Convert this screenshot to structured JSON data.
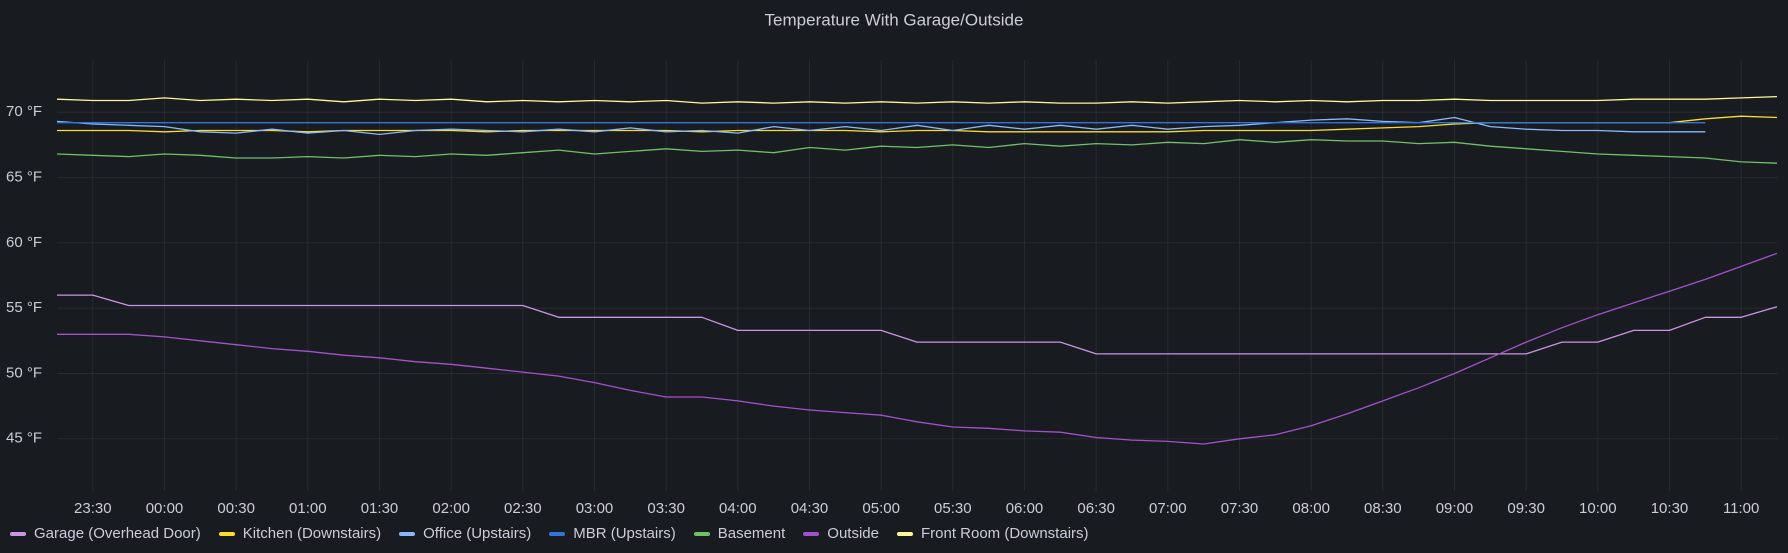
{
  "chart_data": {
    "type": "line",
    "title": "Temperature With Garage/Outside",
    "x": [
      "23:15",
      "23:30",
      "23:45",
      "00:00",
      "00:15",
      "00:30",
      "00:45",
      "01:00",
      "01:15",
      "01:30",
      "01:45",
      "02:00",
      "02:15",
      "02:30",
      "02:45",
      "03:00",
      "03:15",
      "03:30",
      "03:45",
      "04:00",
      "04:15",
      "04:30",
      "04:45",
      "05:00",
      "05:15",
      "05:30",
      "05:45",
      "06:00",
      "06:15",
      "06:30",
      "06:45",
      "07:00",
      "07:15",
      "07:30",
      "07:45",
      "08:00",
      "08:15",
      "08:30",
      "08:45",
      "09:00",
      "09:15",
      "09:30",
      "09:45",
      "10:00",
      "10:15",
      "10:30",
      "10:45",
      "11:00",
      "11:15"
    ],
    "xticks": [
      "23:30",
      "00:00",
      "00:30",
      "01:00",
      "01:30",
      "02:00",
      "02:30",
      "03:00",
      "03:30",
      "04:00",
      "04:30",
      "05:00",
      "05:30",
      "06:00",
      "06:30",
      "07:00",
      "07:30",
      "08:00",
      "08:30",
      "09:00",
      "09:30",
      "10:00",
      "10:30",
      "11:00"
    ],
    "ylim": [
      41,
      74
    ],
    "yticks": [
      {
        "value": 45,
        "label": "45 °F"
      },
      {
        "value": 50,
        "label": "50 °F"
      },
      {
        "value": 55,
        "label": "55 °F"
      },
      {
        "value": 60,
        "label": "60 °F"
      },
      {
        "value": 65,
        "label": "65 °F"
      },
      {
        "value": 70,
        "label": "70 °F"
      }
    ],
    "grid": true,
    "legend": "bottom",
    "series": [
      {
        "name": "Garage (Overhead Door)",
        "color": "#ca95e5",
        "values": [
          56,
          56,
          55.2,
          55.2,
          55.2,
          55.2,
          55.2,
          55.2,
          55.2,
          55.2,
          55.2,
          55.2,
          55.2,
          55.2,
          54.3,
          54.3,
          54.3,
          54.3,
          54.3,
          53.3,
          53.3,
          53.3,
          53.3,
          53.3,
          52.4,
          52.4,
          52.4,
          52.4,
          52.4,
          51.5,
          51.5,
          51.5,
          51.5,
          51.5,
          51.5,
          51.5,
          51.5,
          51.5,
          51.5,
          51.5,
          51.5,
          51.5,
          52.4,
          52.4,
          53.3,
          53.3,
          54.3,
          54.3,
          55.1
        ]
      },
      {
        "name": "Kitchen (Downstairs)",
        "color": "#fade2a",
        "values": [
          68.6,
          68.6,
          68.6,
          68.5,
          68.6,
          68.6,
          68.6,
          68.5,
          68.6,
          68.6,
          68.6,
          68.6,
          68.5,
          68.6,
          68.6,
          68.6,
          68.6,
          68.6,
          68.5,
          68.6,
          68.6,
          68.6,
          68.6,
          68.5,
          68.6,
          68.6,
          68.5,
          68.5,
          68.5,
          68.5,
          68.5,
          68.5,
          68.6,
          68.6,
          68.6,
          68.6,
          68.7,
          68.8,
          68.9,
          69.1,
          69.2,
          69.2,
          69.2,
          69.2,
          69.2,
          69.2,
          69.5,
          69.7,
          69.6
        ]
      },
      {
        "name": "Office (Upstairs)",
        "color": "#8ab8ff",
        "values": [
          69.3,
          69.1,
          69.0,
          68.9,
          68.5,
          68.4,
          68.7,
          68.4,
          68.6,
          68.3,
          68.6,
          68.7,
          68.6,
          68.5,
          68.7,
          68.5,
          68.8,
          68.5,
          68.6,
          68.4,
          68.9,
          68.6,
          68.9,
          68.6,
          69.0,
          68.6,
          69.0,
          68.7,
          69.0,
          68.7,
          69.0,
          68.7,
          68.9,
          69.0,
          69.2,
          69.4,
          69.5,
          69.3,
          69.2,
          69.6,
          68.9,
          68.7,
          68.6,
          68.6,
          68.5,
          68.5,
          68.5,
          null,
          null
        ]
      },
      {
        "name": "MBR (Upstairs)",
        "color": "#3274d9",
        "values": [
          69.2,
          69.2,
          69.2,
          69.2,
          69.2,
          69.2,
          69.2,
          69.2,
          69.2,
          69.2,
          69.2,
          69.2,
          69.2,
          69.2,
          69.2,
          69.2,
          69.2,
          69.2,
          69.2,
          69.2,
          69.2,
          69.2,
          69.2,
          69.2,
          69.2,
          69.2,
          69.2,
          69.2,
          69.2,
          69.2,
          69.2,
          69.2,
          69.2,
          69.2,
          69.2,
          69.2,
          69.2,
          69.2,
          69.2,
          69.2,
          69.2,
          69.2,
          69.2,
          69.2,
          69.2,
          69.2,
          69.2,
          null,
          null
        ]
      },
      {
        "name": "Basement",
        "color": "#73bf69",
        "values": [
          66.8,
          66.7,
          66.6,
          66.8,
          66.7,
          66.5,
          66.5,
          66.6,
          66.5,
          66.7,
          66.6,
          66.8,
          66.7,
          66.9,
          67.1,
          66.8,
          67.0,
          67.2,
          67.0,
          67.1,
          66.9,
          67.3,
          67.1,
          67.4,
          67.3,
          67.5,
          67.3,
          67.6,
          67.4,
          67.6,
          67.5,
          67.7,
          67.6,
          67.9,
          67.7,
          67.9,
          67.8,
          67.8,
          67.6,
          67.7,
          67.4,
          67.2,
          67.0,
          66.8,
          66.7,
          66.6,
          66.5,
          66.2,
          66.1
        ]
      },
      {
        "name": "Outside",
        "color": "#a352cc",
        "values": [
          53.0,
          53.0,
          53.0,
          52.8,
          52.5,
          52.2,
          51.9,
          51.7,
          51.4,
          51.2,
          50.9,
          50.7,
          50.4,
          50.1,
          49.8,
          49.3,
          48.7,
          48.2,
          48.2,
          47.9,
          47.5,
          47.2,
          47.0,
          46.8,
          46.3,
          45.9,
          45.8,
          45.6,
          45.5,
          45.1,
          44.9,
          44.8,
          44.6,
          45.0,
          45.3,
          46.0,
          46.9,
          47.9,
          48.9,
          50.0,
          51.2,
          52.4,
          53.5,
          54.5,
          55.4,
          56.3,
          57.2,
          58.2,
          59.2
        ]
      },
      {
        "name": "Front Room (Downstairs)",
        "color": "#fff899",
        "values": [
          71.0,
          70.9,
          70.9,
          71.1,
          70.9,
          71.0,
          70.9,
          71.0,
          70.8,
          71.0,
          70.9,
          71.0,
          70.8,
          70.9,
          70.8,
          70.9,
          70.8,
          70.9,
          70.7,
          70.8,
          70.7,
          70.8,
          70.7,
          70.8,
          70.7,
          70.8,
          70.7,
          70.8,
          70.7,
          70.7,
          70.8,
          70.7,
          70.8,
          70.9,
          70.8,
          70.9,
          70.8,
          70.9,
          70.9,
          71.0,
          70.9,
          70.9,
          70.9,
          70.9,
          71.0,
          71.0,
          71.0,
          71.1,
          71.2
        ]
      }
    ]
  }
}
